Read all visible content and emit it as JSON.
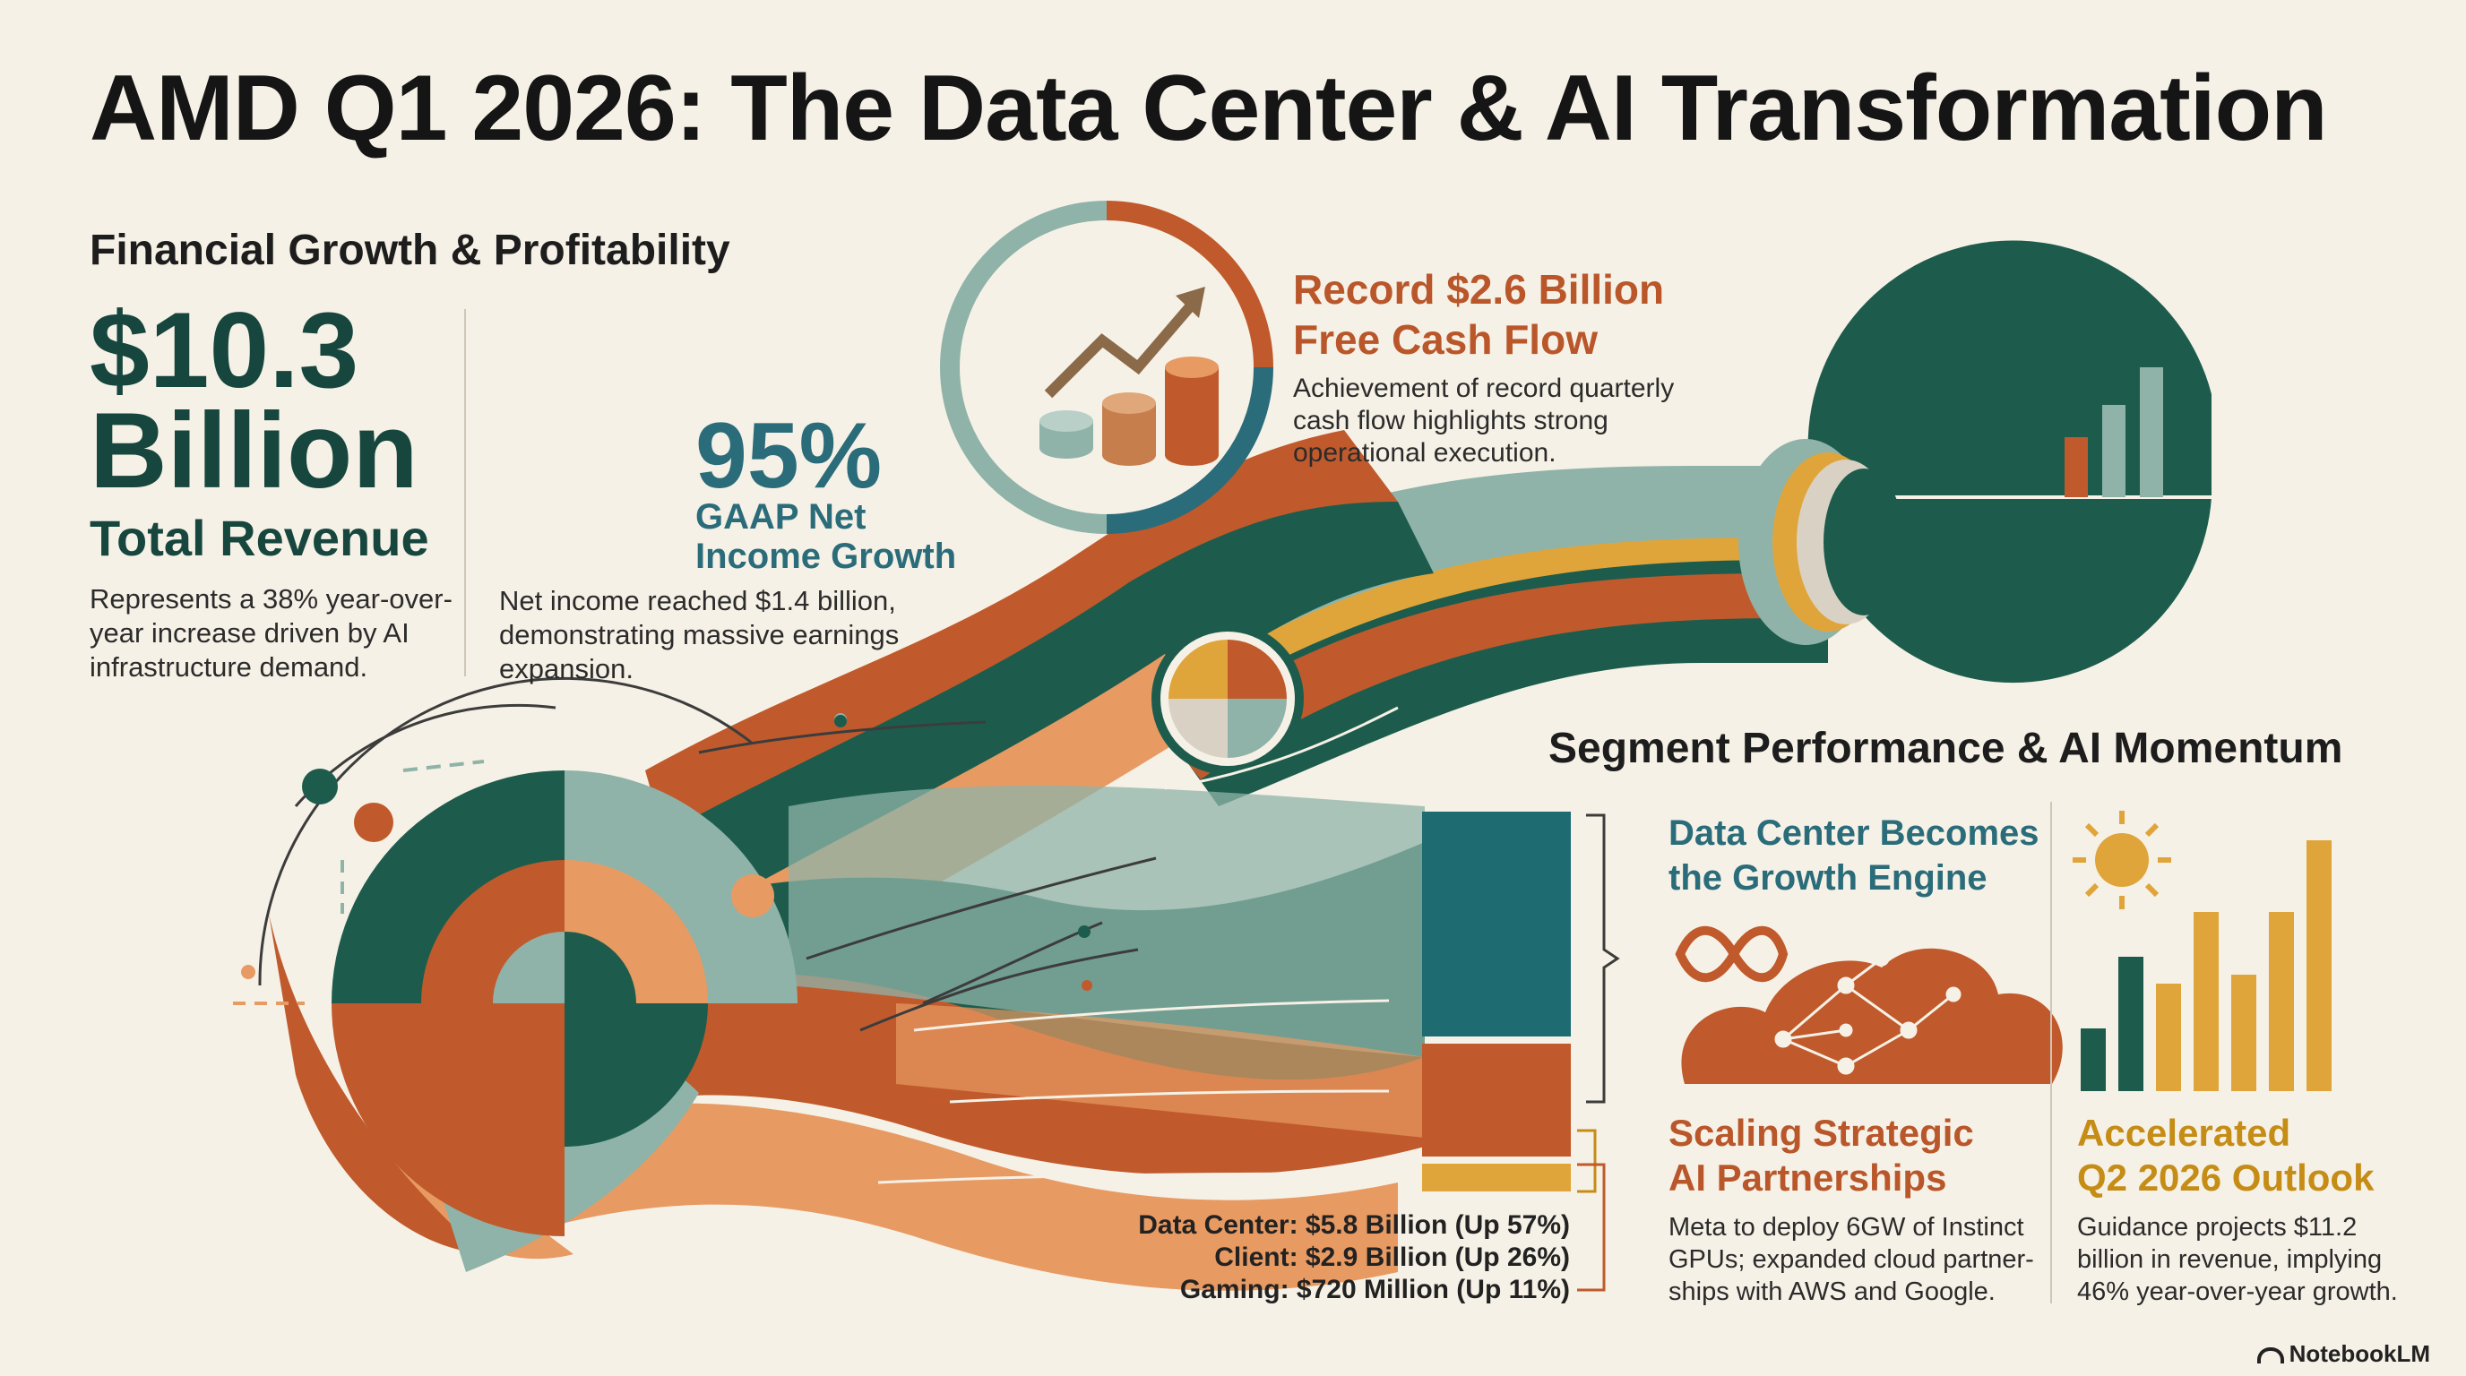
{
  "title": "AMD Q1 2026: The Data Center & AI Transformation",
  "financial": {
    "heading": "Financial Growth & Profitability",
    "revenue_value": "$10.3",
    "revenue_unit": "Billion",
    "revenue_label": "Total Revenue",
    "revenue_note_1": "Represents a 38% year-over-",
    "revenue_note_2": "year increase driven by AI",
    "revenue_note_3": "infrastructure demand.",
    "net_income_pct": "95%",
    "net_income_label_1": "GAAP Net",
    "net_income_label_2": "Income Growth",
    "net_income_note_1": "Net income reached $1.4 billion,",
    "net_income_note_2": "demonstrating massive earnings",
    "net_income_note_3": "expansion."
  },
  "cash_flow": {
    "heading_1": "Record $2.6 Billion",
    "heading_2": "Free Cash Flow",
    "note_1": "Achievement of record quarterly",
    "note_2": "cash flow highlights strong",
    "note_3": "operational execution."
  },
  "segments": {
    "heading": "Segment Performance & AI Momentum",
    "data_center": "Data Center: $5.8 Billion (Up 57%)",
    "client": "Client: $2.9 Billion (Up 26%)",
    "gaming": "Gaming: $720 Million (Up 11%)",
    "values_billion": [
      5.8,
      2.9,
      0.72
    ],
    "colors": [
      "#1f6b72",
      "#c05a2c",
      "#e0a53a"
    ]
  },
  "growth_engine": {
    "heading_1": "Data Center Becomes",
    "heading_2": "the Growth Engine"
  },
  "partnerships": {
    "heading_1": "Scaling Strategic",
    "heading_2": "AI Partnerships",
    "note_1": "Meta to deploy 6GW of Instinct",
    "note_2": "GPUs; expanded cloud partner-",
    "note_3": "ships with AWS and Google."
  },
  "outlook": {
    "heading_1": "Accelerated",
    "heading_2": "Q2 2026 Outlook",
    "note_1": "Guidance projects $11.2",
    "note_2": "billion in revenue, implying",
    "note_3": "46% year-over-year growth."
  },
  "brand": "NotebookLM",
  "palette": {
    "teal": "#1f6b72",
    "dark_green": "#1d5c4c",
    "sage": "#8fb3a8",
    "orange": "#c05a2c",
    "peach": "#e89a63",
    "gold": "#e0a53a"
  }
}
